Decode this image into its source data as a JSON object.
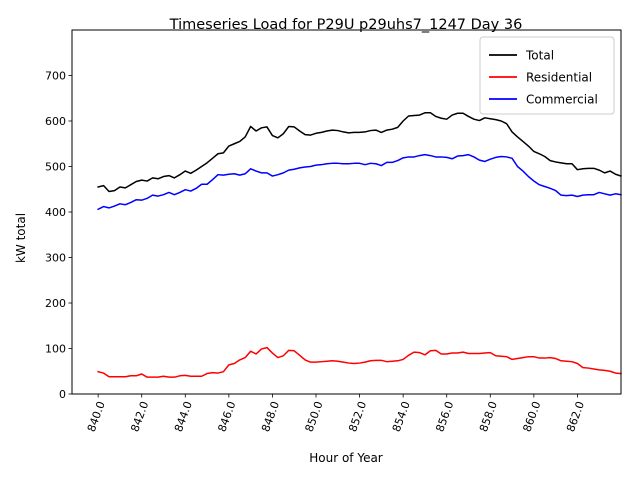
{
  "chart_data": {
    "type": "line",
    "title": "Timeseries Load for P29U p29uhs7_1247  Day 36",
    "xlabel": "Hour of Year",
    "ylabel": "kW total",
    "xlim": [
      838.8,
      864.0
    ],
    "ylim": [
      0,
      800
    ],
    "x_ticks": [
      840,
      842,
      844,
      846,
      848,
      850,
      852,
      854,
      856,
      858,
      860,
      862
    ],
    "x_tick_labels": [
      "840.0",
      "842.0",
      "844.0",
      "846.0",
      "848.0",
      "850.0",
      "852.0",
      "854.0",
      "856.0",
      "858.0",
      "860.0",
      "862.0"
    ],
    "y_ticks": [
      0,
      100,
      200,
      300,
      400,
      500,
      600,
      700
    ],
    "y_tick_labels": [
      "0",
      "100",
      "200",
      "300",
      "400",
      "500",
      "600",
      "700"
    ],
    "grid": false,
    "legend_position": "top-right",
    "x_start": 840.0,
    "x_step": 0.25,
    "series": [
      {
        "name": "Total",
        "color": "#000000",
        "values": [
          455,
          458,
          445,
          447,
          455,
          453,
          460,
          467,
          470,
          468,
          475,
          473,
          478,
          480,
          475,
          482,
          490,
          485,
          492,
          500,
          508,
          518,
          528,
          530,
          545,
          550,
          555,
          565,
          588,
          578,
          585,
          587,
          568,
          563,
          572,
          588,
          587,
          578,
          570,
          569,
          573,
          575,
          578,
          580,
          579,
          576,
          574,
          575,
          575,
          576,
          579,
          580,
          575,
          580,
          582,
          586,
          600,
          611,
          612,
          613,
          618,
          618,
          610,
          606,
          604,
          613,
          617,
          617,
          610,
          604,
          601,
          607,
          605,
          603,
          600,
          594,
          576,
          565,
          555,
          545,
          533,
          528,
          522,
          513,
          510,
          508,
          506,
          506,
          493,
          495,
          496,
          496,
          492,
          486,
          490,
          483,
          479
        ]
      },
      {
        "name": "Residential",
        "color": "#ff0000",
        "values": [
          49,
          46,
          38,
          38,
          38,
          38,
          40,
          40,
          44,
          37,
          37,
          37,
          39,
          37,
          37,
          40,
          41,
          39,
          39,
          39,
          45,
          47,
          46,
          49,
          64,
          67,
          75,
          80,
          94,
          88,
          99,
          102,
          90,
          80,
          84,
          96,
          95,
          85,
          75,
          70,
          70,
          71,
          72,
          73,
          72,
          70,
          68,
          67,
          68,
          70,
          73,
          74,
          74,
          71,
          72,
          73,
          76,
          85,
          92,
          91,
          86,
          95,
          96,
          88,
          88,
          90,
          90,
          92,
          89,
          89,
          89,
          90,
          91,
          84,
          83,
          82,
          76,
          78,
          80,
          82,
          82,
          79,
          79,
          80,
          78,
          73,
          72,
          71,
          67,
          58,
          57,
          55,
          53,
          52,
          50,
          46,
          45
        ]
      },
      {
        "name": "Commercial",
        "color": "#0000ff",
        "values": [
          406,
          412,
          409,
          413,
          418,
          416,
          421,
          427,
          426,
          430,
          437,
          435,
          438,
          443,
          438,
          443,
          449,
          446,
          452,
          461,
          461,
          471,
          482,
          481,
          483,
          484,
          481,
          484,
          495,
          490,
          486,
          486,
          479,
          482,
          486,
          492,
          494,
          497,
          499,
          500,
          503,
          504,
          506,
          507,
          507,
          506,
          506,
          507,
          507,
          504,
          507,
          506,
          502,
          509,
          509,
          513,
          519,
          521,
          521,
          524,
          526,
          524,
          521,
          521,
          520,
          517,
          523,
          524,
          526,
          521,
          514,
          511,
          516,
          520,
          522,
          521,
          518,
          500,
          490,
          478,
          468,
          460,
          456,
          452,
          447,
          437,
          436,
          437,
          434,
          437,
          438,
          438,
          443,
          440,
          437,
          440,
          438
        ]
      }
    ]
  }
}
